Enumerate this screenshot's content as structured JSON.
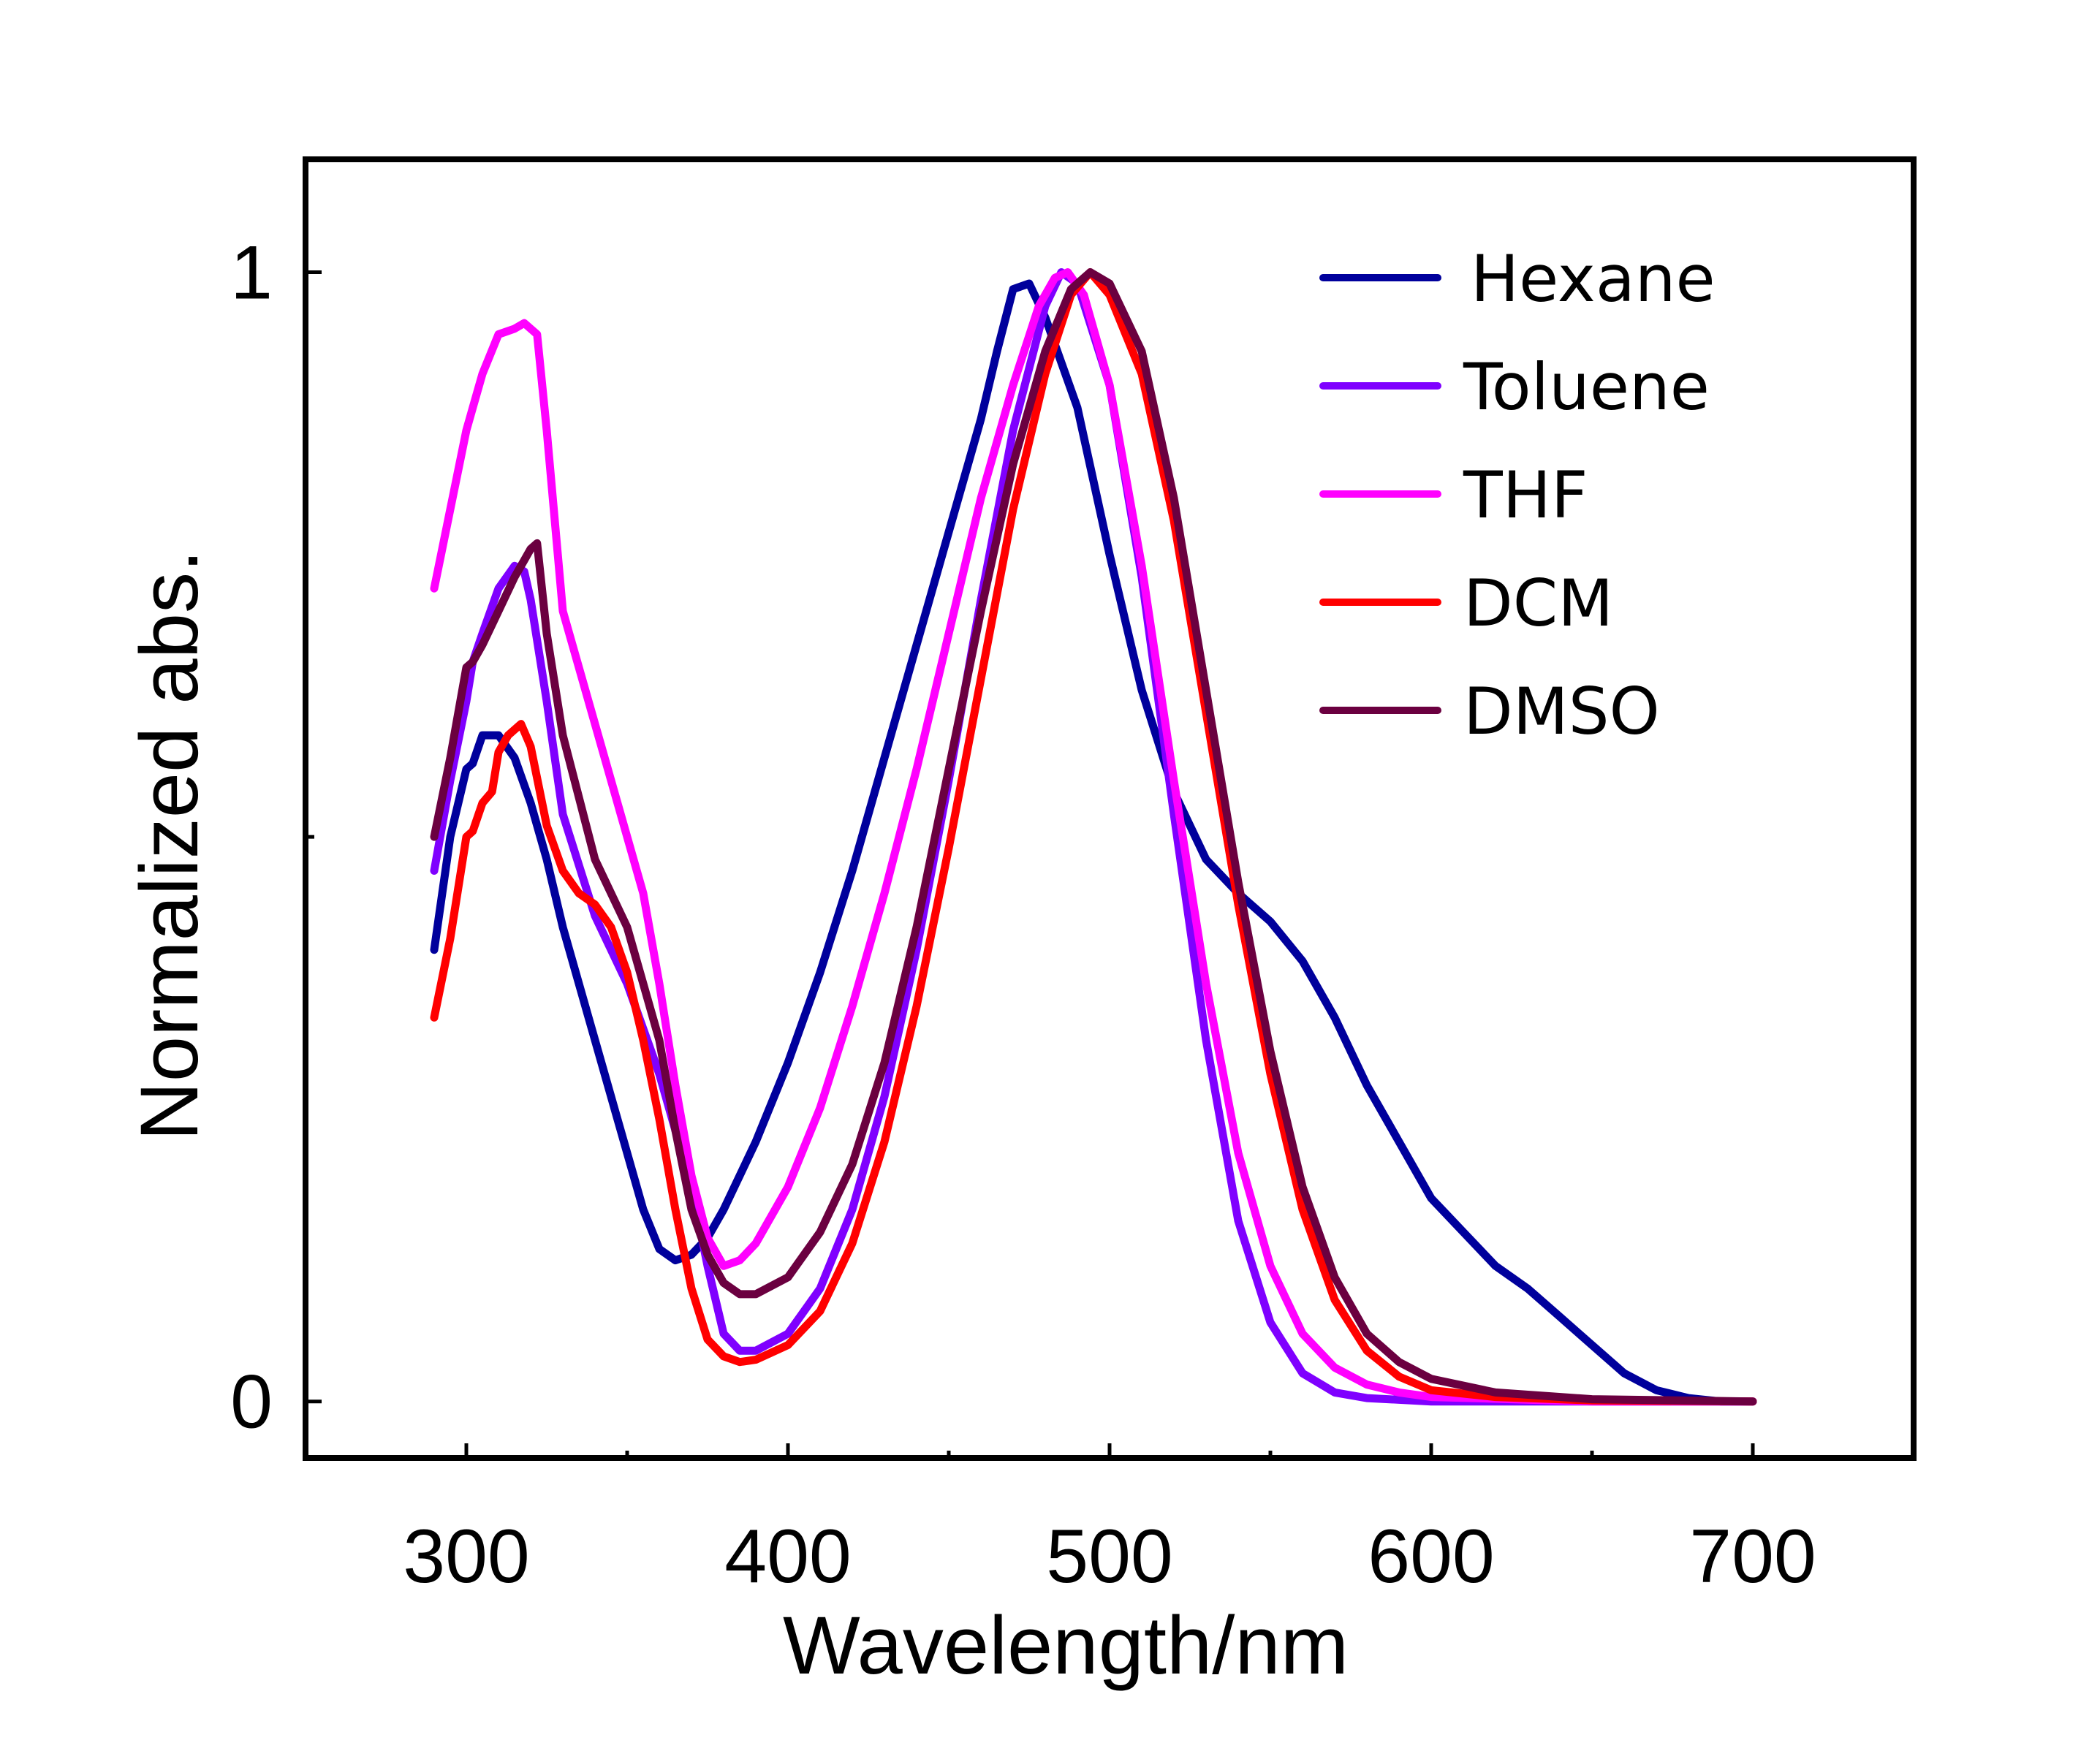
{
  "chart_data": {
    "type": "line",
    "title": "",
    "xlabel": "Wavelength/nm",
    "ylabel": "Normalized abs.",
    "xlim": [
      250,
      750
    ],
    "ylim": [
      -0.05,
      1.1
    ],
    "x_ticks": [
      300,
      400,
      500,
      600,
      700
    ],
    "x_minor_ticks": [
      350,
      450,
      550,
      650
    ],
    "y_ticks": [
      0,
      1
    ],
    "y_tick_labels": [
      "0",
      "1"
    ],
    "y_minor_ticks": [
      0.5
    ],
    "grid": false,
    "legend_position": "top-right",
    "series": [
      {
        "name": "Hexane",
        "color": "#00009c",
        "points": [
          [
            290,
            0.4
          ],
          [
            295,
            0.5
          ],
          [
            300,
            0.56
          ],
          [
            302,
            0.565
          ],
          [
            305,
            0.59
          ],
          [
            310,
            0.59
          ],
          [
            315,
            0.57
          ],
          [
            320,
            0.53
          ],
          [
            325,
            0.48
          ],
          [
            330,
            0.42
          ],
          [
            340,
            0.32
          ],
          [
            350,
            0.22
          ],
          [
            355,
            0.17
          ],
          [
            360,
            0.135
          ],
          [
            365,
            0.125
          ],
          [
            370,
            0.13
          ],
          [
            375,
            0.145
          ],
          [
            380,
            0.17
          ],
          [
            390,
            0.23
          ],
          [
            400,
            0.3
          ],
          [
            410,
            0.38
          ],
          [
            420,
            0.47
          ],
          [
            430,
            0.57
          ],
          [
            440,
            0.67
          ],
          [
            450,
            0.77
          ],
          [
            460,
            0.87
          ],
          [
            465,
            0.93
          ],
          [
            470,
            0.985
          ],
          [
            475,
            0.99
          ],
          [
            480,
            0.96
          ],
          [
            490,
            0.88
          ],
          [
            500,
            0.75
          ],
          [
            510,
            0.63
          ],
          [
            520,
            0.54
          ],
          [
            530,
            0.48
          ],
          [
            540,
            0.45
          ],
          [
            550,
            0.425
          ],
          [
            560,
            0.39
          ],
          [
            570,
            0.34
          ],
          [
            580,
            0.28
          ],
          [
            590,
            0.23
          ],
          [
            600,
            0.18
          ],
          [
            610,
            0.15
          ],
          [
            620,
            0.12
          ],
          [
            630,
            0.1
          ],
          [
            640,
            0.075
          ],
          [
            650,
            0.05
          ],
          [
            660,
            0.025
          ],
          [
            670,
            0.01
          ],
          [
            680,
            0.003
          ],
          [
            690,
            0.0
          ],
          [
            700,
            0.0
          ]
        ]
      },
      {
        "name": "Toluene",
        "color": "#7f00ff",
        "points": [
          [
            290,
            0.47
          ],
          [
            295,
            0.55
          ],
          [
            300,
            0.62
          ],
          [
            302,
            0.655
          ],
          [
            305,
            0.68
          ],
          [
            310,
            0.72
          ],
          [
            315,
            0.74
          ],
          [
            318,
            0.735
          ],
          [
            320,
            0.71
          ],
          [
            325,
            0.62
          ],
          [
            330,
            0.52
          ],
          [
            340,
            0.43
          ],
          [
            350,
            0.37
          ],
          [
            360,
            0.29
          ],
          [
            370,
            0.19
          ],
          [
            375,
            0.12
          ],
          [
            380,
            0.06
          ],
          [
            385,
            0.045
          ],
          [
            390,
            0.045
          ],
          [
            400,
            0.06
          ],
          [
            410,
            0.1
          ],
          [
            420,
            0.17
          ],
          [
            430,
            0.27
          ],
          [
            440,
            0.4
          ],
          [
            450,
            0.55
          ],
          [
            460,
            0.71
          ],
          [
            470,
            0.86
          ],
          [
            480,
            0.97
          ],
          [
            485,
            1.0
          ],
          [
            490,
            0.99
          ],
          [
            500,
            0.9
          ],
          [
            510,
            0.73
          ],
          [
            520,
            0.52
          ],
          [
            530,
            0.32
          ],
          [
            540,
            0.16
          ],
          [
            550,
            0.07
          ],
          [
            560,
            0.025
          ],
          [
            570,
            0.008
          ],
          [
            580,
            0.003
          ],
          [
            600,
            0.0
          ],
          [
            650,
            0.0
          ],
          [
            700,
            0.0
          ]
        ]
      },
      {
        "name": "THF",
        "color": "#ff00ff",
        "points": [
          [
            290,
            0.72
          ],
          [
            295,
            0.79
          ],
          [
            300,
            0.86
          ],
          [
            302,
            0.88
          ],
          [
            305,
            0.91
          ],
          [
            310,
            0.945
          ],
          [
            315,
            0.95
          ],
          [
            318,
            0.955
          ],
          [
            322,
            0.945
          ],
          [
            325,
            0.86
          ],
          [
            330,
            0.7
          ],
          [
            340,
            0.6
          ],
          [
            350,
            0.5
          ],
          [
            355,
            0.45
          ],
          [
            360,
            0.37
          ],
          [
            365,
            0.28
          ],
          [
            370,
            0.2
          ],
          [
            375,
            0.145
          ],
          [
            380,
            0.12
          ],
          [
            385,
            0.125
          ],
          [
            390,
            0.14
          ],
          [
            400,
            0.19
          ],
          [
            410,
            0.26
          ],
          [
            420,
            0.35
          ],
          [
            430,
            0.45
          ],
          [
            440,
            0.56
          ],
          [
            450,
            0.68
          ],
          [
            460,
            0.8
          ],
          [
            470,
            0.9
          ],
          [
            478,
            0.97
          ],
          [
            483,
            0.995
          ],
          [
            487,
            1.0
          ],
          [
            492,
            0.98
          ],
          [
            500,
            0.9
          ],
          [
            510,
            0.74
          ],
          [
            520,
            0.55
          ],
          [
            530,
            0.37
          ],
          [
            540,
            0.22
          ],
          [
            550,
            0.12
          ],
          [
            560,
            0.06
          ],
          [
            570,
            0.03
          ],
          [
            580,
            0.015
          ],
          [
            590,
            0.008
          ],
          [
            600,
            0.004
          ],
          [
            650,
            0.0
          ],
          [
            700,
            0.0
          ]
        ]
      },
      {
        "name": "DCM",
        "color": "#ff0000",
        "points": [
          [
            290,
            0.34
          ],
          [
            295,
            0.41
          ],
          [
            300,
            0.5
          ],
          [
            302,
            0.505
          ],
          [
            305,
            0.53
          ],
          [
            308,
            0.54
          ],
          [
            310,
            0.575
          ],
          [
            313,
            0.59
          ],
          [
            317,
            0.6
          ],
          [
            320,
            0.58
          ],
          [
            325,
            0.51
          ],
          [
            330,
            0.47
          ],
          [
            335,
            0.45
          ],
          [
            340,
            0.44
          ],
          [
            345,
            0.42
          ],
          [
            350,
            0.38
          ],
          [
            355,
            0.32
          ],
          [
            360,
            0.25
          ],
          [
            365,
            0.17
          ],
          [
            370,
            0.1
          ],
          [
            375,
            0.055
          ],
          [
            380,
            0.04
          ],
          [
            385,
            0.035
          ],
          [
            390,
            0.037
          ],
          [
            400,
            0.05
          ],
          [
            410,
            0.08
          ],
          [
            420,
            0.14
          ],
          [
            430,
            0.23
          ],
          [
            440,
            0.35
          ],
          [
            450,
            0.49
          ],
          [
            460,
            0.64
          ],
          [
            470,
            0.79
          ],
          [
            480,
            0.91
          ],
          [
            488,
            0.98
          ],
          [
            494,
            1.0
          ],
          [
            500,
            0.98
          ],
          [
            510,
            0.91
          ],
          [
            520,
            0.78
          ],
          [
            530,
            0.61
          ],
          [
            540,
            0.44
          ],
          [
            550,
            0.29
          ],
          [
            560,
            0.17
          ],
          [
            570,
            0.09
          ],
          [
            580,
            0.045
          ],
          [
            590,
            0.022
          ],
          [
            600,
            0.01
          ],
          [
            620,
            0.004
          ],
          [
            650,
            0.001
          ],
          [
            700,
            0.0
          ]
        ]
      },
      {
        "name": "DMSO",
        "color": "#6b0040",
        "points": [
          [
            290,
            0.5
          ],
          [
            295,
            0.57
          ],
          [
            300,
            0.65
          ],
          [
            302,
            0.655
          ],
          [
            305,
            0.67
          ],
          [
            310,
            0.7
          ],
          [
            315,
            0.73
          ],
          [
            318,
            0.745
          ],
          [
            320,
            0.755
          ],
          [
            322,
            0.76
          ],
          [
            325,
            0.68
          ],
          [
            330,
            0.59
          ],
          [
            340,
            0.48
          ],
          [
            350,
            0.42
          ],
          [
            360,
            0.32
          ],
          [
            365,
            0.24
          ],
          [
            370,
            0.17
          ],
          [
            375,
            0.13
          ],
          [
            380,
            0.105
          ],
          [
            385,
            0.095
          ],
          [
            390,
            0.095
          ],
          [
            400,
            0.11
          ],
          [
            410,
            0.15
          ],
          [
            420,
            0.21
          ],
          [
            430,
            0.3
          ],
          [
            440,
            0.42
          ],
          [
            450,
            0.56
          ],
          [
            460,
            0.7
          ],
          [
            470,
            0.83
          ],
          [
            480,
            0.93
          ],
          [
            488,
            0.985
          ],
          [
            494,
            1.0
          ],
          [
            500,
            0.99
          ],
          [
            510,
            0.93
          ],
          [
            520,
            0.8
          ],
          [
            530,
            0.63
          ],
          [
            540,
            0.46
          ],
          [
            550,
            0.31
          ],
          [
            560,
            0.19
          ],
          [
            570,
            0.11
          ],
          [
            580,
            0.06
          ],
          [
            590,
            0.035
          ],
          [
            600,
            0.02
          ],
          [
            620,
            0.008
          ],
          [
            650,
            0.002
          ],
          [
            700,
            0.0
          ]
        ]
      }
    ]
  }
}
